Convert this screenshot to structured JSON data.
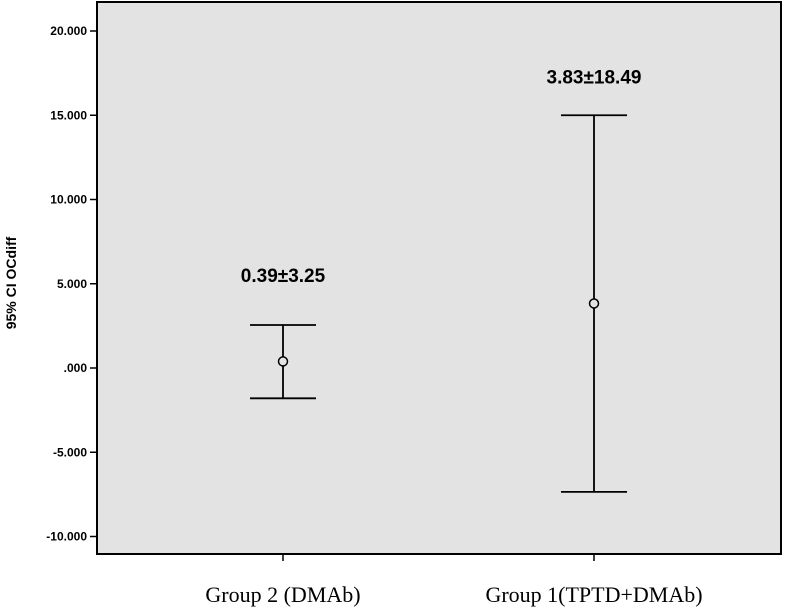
{
  "chart_data": {
    "type": "errorbar",
    "ylabel": "95% CI OCdiff",
    "ylim": [
      -10.5,
      20.5
    ],
    "yticks": [
      20,
      15,
      10,
      5,
      0,
      -5,
      -10
    ],
    "ytick_labels": [
      "20.000",
      "15.000",
      "10.000",
      "5.000",
      ".000",
      "-5.000",
      "-10.000"
    ],
    "categories": [
      "Group 2 (DMAb)",
      "Group 1(TPTD+DMAb)"
    ],
    "points": [
      {
        "category": "Group 2 (DMAb)",
        "mean": 0.39,
        "ci_low": -1.8,
        "ci_high": 2.55,
        "annotation": "0.39±3.25"
      },
      {
        "category": "Group 1(TPTD+DMAb)",
        "mean": 3.83,
        "ci_low": -7.35,
        "ci_high": 15.0,
        "annotation": "3.83±18.49"
      }
    ],
    "grid": false,
    "legend": "none"
  },
  "colors": {
    "plot_background": "#e3e3e3",
    "line": "#000000"
  }
}
